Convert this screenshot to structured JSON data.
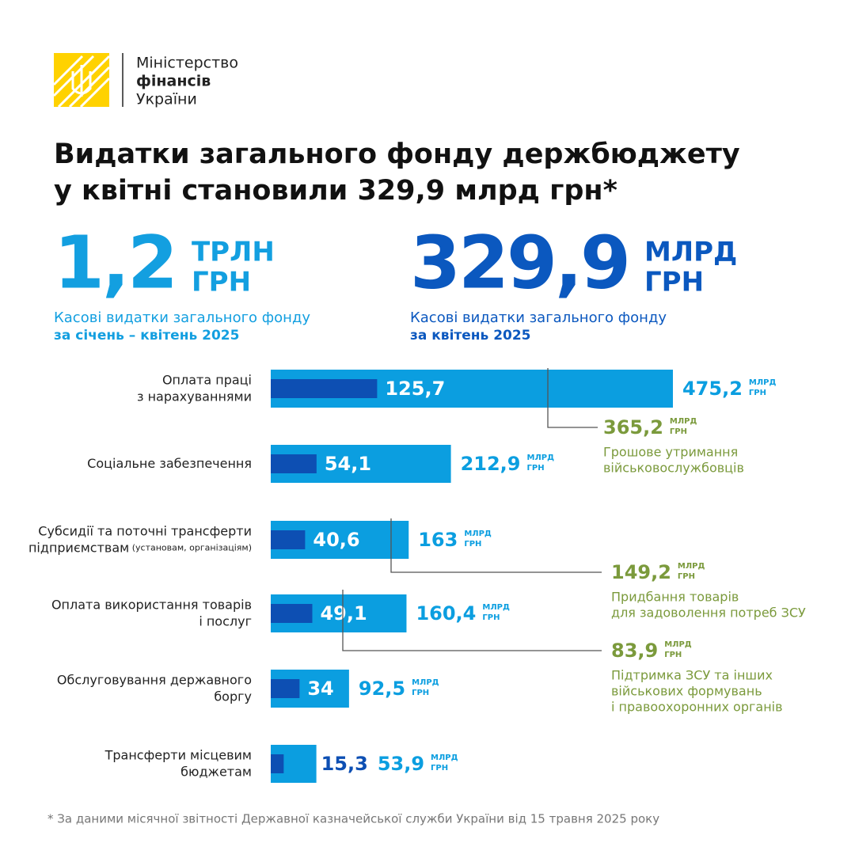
{
  "header": {
    "logo_lines": [
      "Міністерство",
      "фінансів",
      "України"
    ]
  },
  "chart_data": {
    "type": "hbar",
    "title": [
      "Видатки загального фонду держбюджету",
      "у квітні становили 329,9 млрд грн*"
    ],
    "stats": [
      {
        "value": 1.2,
        "label": "1,2",
        "unit": [
          "ТРЛН",
          "ГРН"
        ],
        "text": "Касові видатки загального фонду",
        "period": "за січень – квітень 2025",
        "color": "#139fe0"
      },
      {
        "value": 329.9,
        "label": "329,9",
        "unit": [
          "МЛРД",
          "ГРН"
        ],
        "text": "Касові видатки загального фонду",
        "period": "за квітень 2025",
        "color": "#0b58bf"
      }
    ],
    "unit": [
      "МЛРД",
      "ГРН"
    ],
    "categories": [
      "Оплата праці\nз нарахуваннями",
      "Соціальне забезпечення",
      "Субсидії та поточні трансферти\nпідприємствам (установам, організаціям)",
      "Оплата використання товарів\nі послуг",
      "Обслуговування державного\nборгу",
      "Трансферти місцевим\nбюджетам"
    ],
    "series": [
      {
        "color": "#0b9ee0",
        "values": [
          475.2,
          212.9,
          163,
          160.4,
          92.5,
          53.9
        ],
        "value_labels": [
          "475,2",
          "212,9",
          "163",
          "160,4",
          "92,5",
          "53,9"
        ]
      },
      {
        "color": "#0d4fb3",
        "values": [
          125.7,
          54.1,
          40.6,
          49.1,
          34,
          15.3
        ],
        "value_labels": [
          "125,7",
          "54,1",
          "40,6",
          "49,1",
          "34",
          "15,3"
        ]
      }
    ],
    "annotations": [
      {
        "value": 365.2,
        "label": "365,2",
        "text": [
          "Грошове утримання",
          "військовослужбовців"
        ],
        "color": "#7b9a3c"
      },
      {
        "value": 149.2,
        "label": "149,2",
        "text": [
          "Придбання товарів",
          "для задоволення потреб ЗСУ"
        ],
        "color": "#7b9a3c"
      },
      {
        "value": 83.9,
        "label": "83,9",
        "text": [
          "Підтримка ЗСУ та інших",
          "військових формувань",
          "і правоохоронних органів"
        ],
        "color": "#7b9a3c"
      }
    ],
    "footnote": "* За даними місячної звітності Державної казначейської служби України від 15 травня 2025 року"
  }
}
